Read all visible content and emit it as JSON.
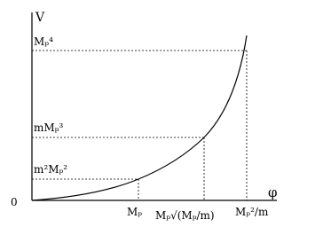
{
  "axes": {
    "y_label": "V",
    "x_label": "φ",
    "origin": "0"
  },
  "y_levels": [
    "Mₚ⁴",
    "mMₚ³",
    "m²Mₚ²"
  ],
  "x_levels": [
    "Mₚ",
    "Mₚ√(Mₚ/m)",
    "Mₚ²/m"
  ]
}
